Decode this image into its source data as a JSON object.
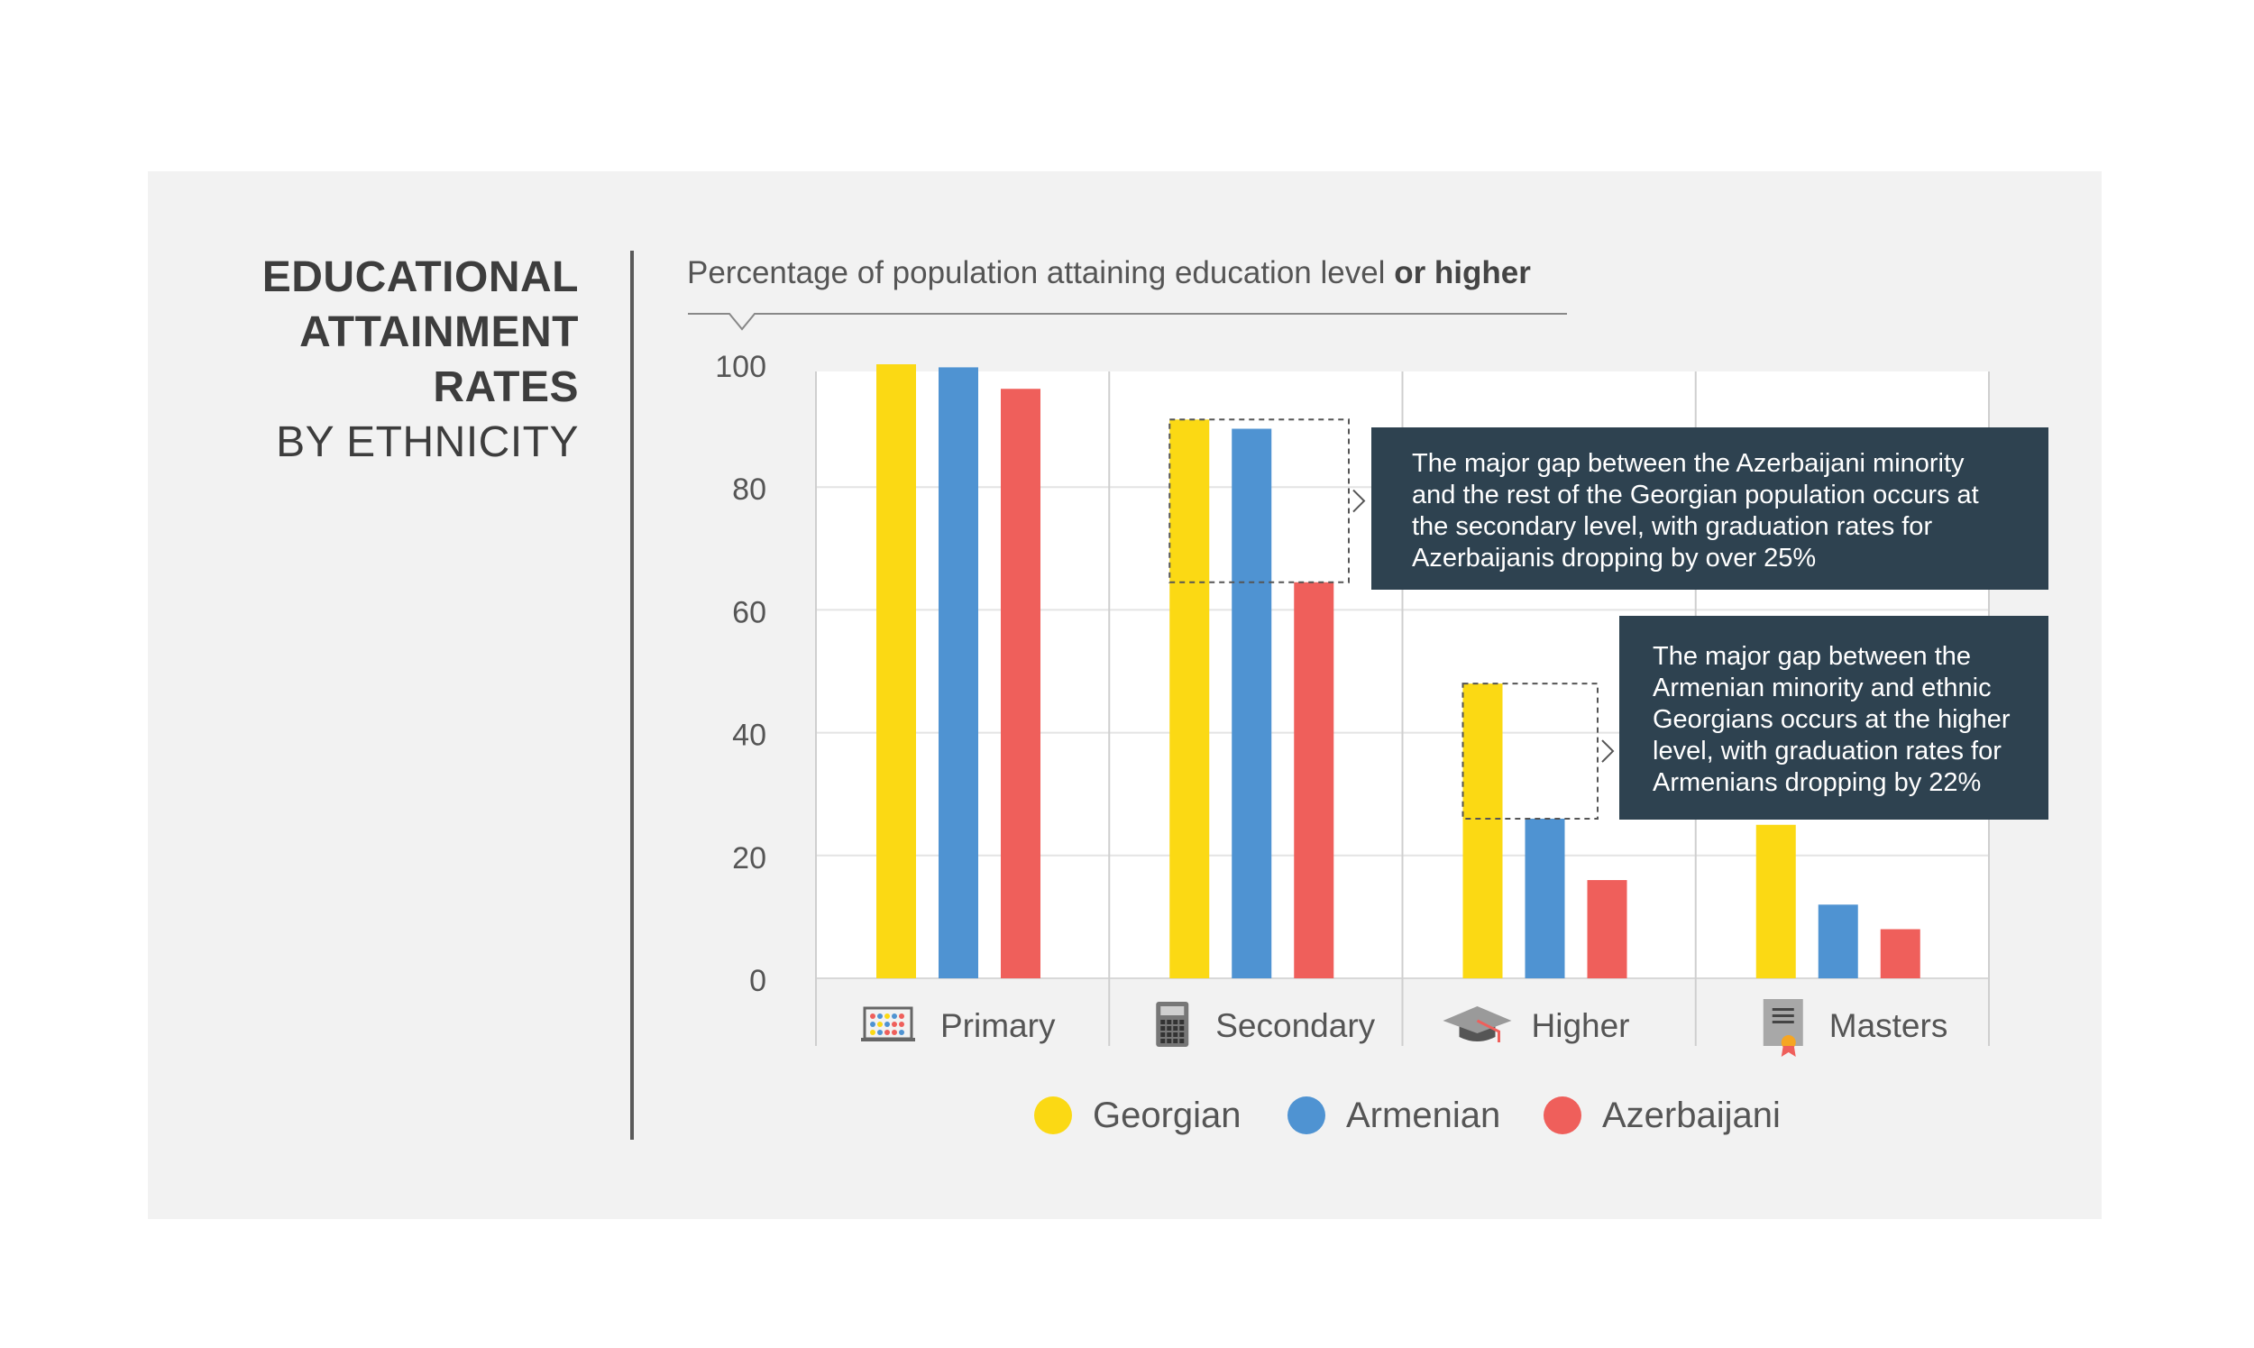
{
  "title": {
    "line1": "EDUCATIONAL",
    "line2": "ATTAINMENT",
    "line3": "RATES",
    "line4": "BY ETHNICITY"
  },
  "subtitle": {
    "text": "Percentage of population attaining education level ",
    "bold": "or higher"
  },
  "colors": {
    "georgian": "#fbd914",
    "armenian": "#4f93d2",
    "azerbaijani": "#ef5f5b",
    "callout_bg": "#2e4250",
    "panel_bg": "#f2f2f2"
  },
  "chart_data": {
    "type": "bar",
    "categories": [
      "Primary",
      "Secondary",
      "Higher",
      "Masters"
    ],
    "category_icons": [
      "abacus-icon",
      "calculator-icon",
      "graduation-cap-icon",
      "diploma-icon"
    ],
    "series": [
      {
        "name": "Georgian",
        "values": [
          100,
          91,
          48,
          25
        ]
      },
      {
        "name": "Armenian",
        "values": [
          99.5,
          89.5,
          26,
          12
        ]
      },
      {
        "name": "Azerbaijani",
        "values": [
          96,
          64.5,
          16,
          8
        ]
      }
    ],
    "ylim": [
      0,
      100
    ],
    "yticks": [
      0,
      20,
      40,
      60,
      80,
      100
    ],
    "grid": true,
    "legend_position": "bottom",
    "annotations": [
      {
        "category": "Secondary",
        "text": "The major gap between the Azerbaijani minority and the rest of the Georgian population occurs at the secondary level, with graduation rates for Azerbaijanis dropping by over 25%",
        "lines": [
          "The major gap between the Azerbaijani minority",
          "and the rest of the Georgian population occurs at",
          "the secondary level, with graduation rates for",
          "Azerbaijanis dropping by over 25%"
        ]
      },
      {
        "category": "Higher",
        "text": "The major gap between the Armenian minority and ethnic Georgians occurs at the higher level, with graduation rates for Armenians dropping by 22%",
        "lines": [
          "The major gap between the",
          "Armenian minority and ethnic",
          "Georgians occurs at the higher",
          "level, with graduation rates for",
          "Armenians dropping by 22%"
        ]
      }
    ]
  }
}
